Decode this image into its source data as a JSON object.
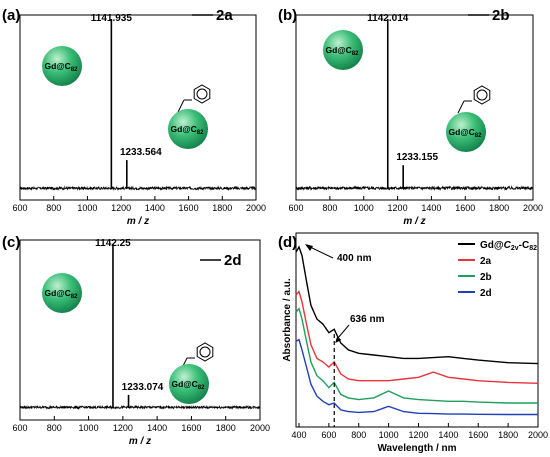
{
  "chart_data": [
    {
      "type": "line",
      "panel_label": "(a)",
      "series_tag": "2a",
      "xlabel": "m / z",
      "xlim": [
        600,
        2000
      ],
      "xticks": [
        "600",
        "800",
        "1000",
        "1200",
        "1400",
        "1600",
        "1800",
        "2000"
      ],
      "peaks": [
        {
          "x": 1141.935,
          "y": 1.0,
          "label": "1141.935"
        },
        {
          "x": 1233.564,
          "y": 0.17,
          "label": "1233.564"
        }
      ],
      "ball_labels": [
        "Gd@C",
        "82",
        "Gd@C",
        "82"
      ]
    },
    {
      "type": "line",
      "panel_label": "(b)",
      "series_tag": "2b",
      "xlabel": "m / z",
      "xlim": [
        600,
        2000
      ],
      "xticks": [
        "600",
        "800",
        "1000",
        "1200",
        "1400",
        "1600",
        "1800",
        "2000"
      ],
      "peaks": [
        {
          "x": 1142.014,
          "y": 1.0,
          "label": "1142.014"
        },
        {
          "x": 1233.155,
          "y": 0.14,
          "label": "1233.155"
        }
      ],
      "ball_labels": [
        "Gd@C",
        "82",
        "Gd@C",
        "82"
      ]
    },
    {
      "type": "line",
      "panel_label": "(c)",
      "series_tag": "2d",
      "xlabel": "m / z",
      "xlim": [
        600,
        2000
      ],
      "xticks": [
        "600",
        "800",
        "1000",
        "1200",
        "1400",
        "1600",
        "1800",
        "2000"
      ],
      "peaks": [
        {
          "x": 1142.25,
          "y": 1.0,
          "label": "1142.25"
        },
        {
          "x": 1233.074,
          "y": 0.08,
          "label": "1233.074"
        }
      ],
      "ball_labels": [
        "Gd@C",
        "82",
        "Gd@C",
        "82"
      ]
    },
    {
      "type": "line",
      "panel_label": "(d)",
      "xlabel": "Wavelength / nm",
      "ylabel": "Absorbance / a.u.",
      "xlim": [
        380,
        2000
      ],
      "xticks": [
        "400",
        "600",
        "800",
        "1000",
        "1200",
        "1400",
        "1600",
        "1800",
        "2000"
      ],
      "annotations": [
        {
          "text": "400 nm",
          "x": 400
        },
        {
          "text": "636 nm",
          "x": 636
        }
      ],
      "legend_position": "top-right",
      "series": [
        {
          "name": "Gd@C2v-C82",
          "legend_parts": [
            "Gd@",
            "C",
            "2v",
            "-C",
            "82"
          ],
          "color": "#000000",
          "x": [
            380,
            400,
            420,
            450,
            480,
            520,
            560,
            600,
            636,
            680,
            730,
            800,
            900,
            1000,
            1100,
            1200,
            1300,
            1400,
            1500,
            1600,
            1800,
            2000
          ],
          "y": [
            0.95,
            0.98,
            0.93,
            0.78,
            0.64,
            0.56,
            0.53,
            0.48,
            0.5,
            0.42,
            0.38,
            0.36,
            0.35,
            0.34,
            0.33,
            0.33,
            0.335,
            0.34,
            0.33,
            0.32,
            0.305,
            0.3
          ]
        },
        {
          "name": "2a",
          "color": "#e8343c",
          "x": [
            380,
            400,
            420,
            450,
            480,
            520,
            560,
            600,
            636,
            680,
            730,
            800,
            900,
            1000,
            1100,
            1200,
            1300,
            1400,
            1500,
            1600,
            1800,
            2000
          ],
          "y": [
            0.7,
            0.72,
            0.66,
            0.53,
            0.41,
            0.33,
            0.31,
            0.28,
            0.31,
            0.24,
            0.21,
            0.2,
            0.2,
            0.2,
            0.21,
            0.22,
            0.25,
            0.22,
            0.21,
            0.2,
            0.19,
            0.185
          ]
        },
        {
          "name": "2b",
          "color": "#1f9e5c",
          "x": [
            380,
            400,
            420,
            450,
            480,
            520,
            560,
            600,
            636,
            680,
            730,
            800,
            900,
            1000,
            1100,
            1200,
            1300,
            1400,
            1500,
            1600,
            1800,
            2000
          ],
          "y": [
            0.6,
            0.62,
            0.56,
            0.43,
            0.31,
            0.23,
            0.2,
            0.16,
            0.19,
            0.12,
            0.1,
            0.09,
            0.1,
            0.14,
            0.1,
            0.09,
            0.085,
            0.08,
            0.08,
            0.075,
            0.07,
            0.07
          ]
        },
        {
          "name": "2d",
          "color": "#1f3fb8",
          "x": [
            380,
            400,
            420,
            450,
            480,
            520,
            560,
            600,
            636,
            680,
            730,
            800,
            900,
            1000,
            1100,
            1200,
            1300,
            1400,
            1500,
            1600,
            1800,
            2000
          ],
          "y": [
            0.43,
            0.44,
            0.38,
            0.28,
            0.18,
            0.11,
            0.08,
            0.06,
            0.07,
            0.03,
            0.02,
            0.015,
            0.02,
            0.05,
            0.02,
            0.01,
            0.008,
            0.005,
            0.005,
            0.004,
            0.003,
            0.003
          ]
        }
      ]
    }
  ]
}
